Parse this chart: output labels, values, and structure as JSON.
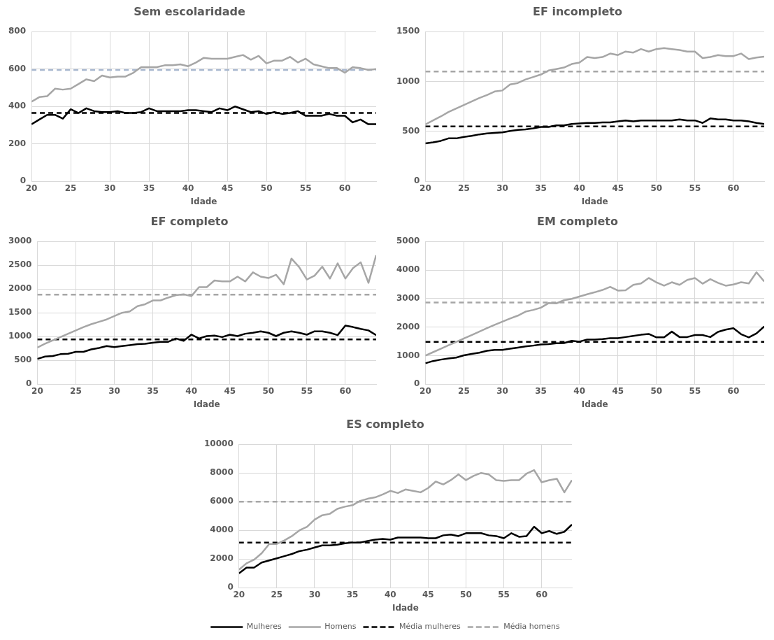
{
  "chart_data": [
    {
      "type": "line",
      "title": "Sem escolaridade",
      "xlabel": "Idade",
      "x": [
        20,
        21,
        22,
        23,
        24,
        25,
        26,
        27,
        28,
        29,
        30,
        31,
        32,
        33,
        34,
        35,
        36,
        37,
        38,
        39,
        40,
        41,
        42,
        43,
        44,
        45,
        46,
        47,
        48,
        49,
        50,
        51,
        52,
        53,
        54,
        55,
        56,
        57,
        58,
        59,
        60,
        61,
        62,
        63,
        64
      ],
      "xlim": [
        20,
        64
      ],
      "xticks": [
        20,
        25,
        30,
        35,
        40,
        45,
        50,
        55,
        60
      ],
      "ylim": [
        0,
        800
      ],
      "yticks": [
        0,
        200,
        400,
        600,
        800
      ],
      "grid": true,
      "legend": false,
      "series": [
        {
          "color": "#000000",
          "values": [
            305,
            330,
            355,
            355,
            335,
            385,
            365,
            390,
            375,
            370,
            370,
            375,
            365,
            365,
            370,
            390,
            375,
            375,
            375,
            375,
            380,
            380,
            375,
            370,
            390,
            380,
            400,
            385,
            370,
            375,
            360,
            370,
            360,
            365,
            375,
            350,
            350,
            350,
            360,
            350,
            350,
            315,
            330,
            305,
            305
          ]
        },
        {
          "color": "#a6a6a6",
          "values": [
            425,
            450,
            455,
            495,
            490,
            495,
            520,
            545,
            535,
            565,
            555,
            560,
            560,
            580,
            610,
            610,
            610,
            620,
            620,
            625,
            615,
            635,
            660,
            655,
            655,
            655,
            665,
            675,
            650,
            670,
            630,
            645,
            645,
            665,
            635,
            655,
            625,
            615,
            605,
            605,
            580,
            610,
            605,
            595,
            600
          ]
        },
        {
          "color": "#000000",
          "line_style": "dashed",
          "values": [
            365,
            365,
            365,
            365,
            365,
            365,
            365,
            365,
            365,
            365,
            365,
            365,
            365,
            365,
            365,
            365,
            365,
            365,
            365,
            365,
            365,
            365,
            365,
            365,
            365,
            365,
            365,
            365,
            365,
            365,
            365,
            365,
            365,
            365,
            365,
            365,
            365,
            365,
            365,
            365,
            365,
            365,
            365,
            365,
            365
          ]
        },
        {
          "color": "#a9b8d0",
          "line_style": "dashed",
          "values": [
            595,
            595,
            595,
            595,
            595,
            595,
            595,
            595,
            595,
            595,
            595,
            595,
            595,
            595,
            595,
            595,
            595,
            595,
            595,
            595,
            595,
            595,
            595,
            595,
            595,
            595,
            595,
            595,
            595,
            595,
            595,
            595,
            595,
            595,
            595,
            595,
            595,
            595,
            595,
            595,
            595,
            595,
            595,
            595,
            595
          ]
        }
      ]
    },
    {
      "type": "line",
      "title": "EF incompleto",
      "xlabel": "Idade",
      "x": [
        20,
        21,
        22,
        23,
        24,
        25,
        26,
        27,
        28,
        29,
        30,
        31,
        32,
        33,
        34,
        35,
        36,
        37,
        38,
        39,
        40,
        41,
        42,
        43,
        44,
        45,
        46,
        47,
        48,
        49,
        50,
        51,
        52,
        53,
        54,
        55,
        56,
        57,
        58,
        59,
        60,
        61,
        62,
        63,
        64
      ],
      "xlim": [
        20,
        64
      ],
      "xticks": [
        20,
        25,
        30,
        35,
        40,
        45,
        50,
        55,
        60
      ],
      "ylim": [
        0,
        1500
      ],
      "yticks": [
        0,
        500,
        1000,
        1500
      ],
      "grid": true,
      "legend": false,
      "series": [
        {
          "color": "#000000",
          "values": [
            380,
            390,
            405,
            430,
            430,
            445,
            455,
            470,
            480,
            485,
            490,
            505,
            515,
            520,
            530,
            545,
            545,
            560,
            560,
            575,
            580,
            585,
            585,
            590,
            590,
            600,
            610,
            600,
            610,
            610,
            610,
            610,
            610,
            620,
            610,
            610,
            585,
            630,
            620,
            620,
            610,
            610,
            600,
            585,
            575
          ]
        },
        {
          "color": "#a6a6a6",
          "values": [
            570,
            610,
            650,
            695,
            730,
            765,
            800,
            835,
            865,
            900,
            910,
            970,
            985,
            1020,
            1045,
            1070,
            1110,
            1125,
            1140,
            1175,
            1190,
            1245,
            1235,
            1245,
            1280,
            1265,
            1300,
            1290,
            1325,
            1300,
            1325,
            1335,
            1325,
            1315,
            1300,
            1300,
            1235,
            1245,
            1265,
            1255,
            1255,
            1280,
            1225,
            1240,
            1250
          ]
        },
        {
          "color": "#000000",
          "line_style": "dashed",
          "values": [
            550,
            550,
            550,
            550,
            550,
            550,
            550,
            550,
            550,
            550,
            550,
            550,
            550,
            550,
            550,
            550,
            550,
            550,
            550,
            550,
            550,
            550,
            550,
            550,
            550,
            550,
            550,
            550,
            550,
            550,
            550,
            550,
            550,
            550,
            550,
            550,
            550,
            550,
            550,
            550,
            550,
            550,
            550,
            550,
            550
          ]
        },
        {
          "color": "#a6a6a6",
          "line_style": "dashed",
          "values": [
            1100,
            1100,
            1100,
            1100,
            1100,
            1100,
            1100,
            1100,
            1100,
            1100,
            1100,
            1100,
            1100,
            1100,
            1100,
            1100,
            1100,
            1100,
            1100,
            1100,
            1100,
            1100,
            1100,
            1100,
            1100,
            1100,
            1100,
            1100,
            1100,
            1100,
            1100,
            1100,
            1100,
            1100,
            1100,
            1100,
            1100,
            1100,
            1100,
            1100,
            1100,
            1100,
            1100,
            1100,
            1100
          ]
        }
      ]
    },
    {
      "type": "line",
      "title": "EF completo",
      "xlabel": "Idade",
      "x": [
        20,
        21,
        22,
        23,
        24,
        25,
        26,
        27,
        28,
        29,
        30,
        31,
        32,
        33,
        34,
        35,
        36,
        37,
        38,
        39,
        40,
        41,
        42,
        43,
        44,
        45,
        46,
        47,
        48,
        49,
        50,
        51,
        52,
        53,
        54,
        55,
        56,
        57,
        58,
        59,
        60,
        61,
        62,
        63,
        64
      ],
      "xlim": [
        20,
        64
      ],
      "xticks": [
        20,
        25,
        30,
        35,
        40,
        45,
        50,
        55,
        60
      ],
      "ylim": [
        0,
        3000
      ],
      "yticks": [
        0,
        500,
        1000,
        1500,
        2000,
        2500,
        3000
      ],
      "grid": true,
      "legend": false,
      "series": [
        {
          "color": "#000000",
          "values": [
            530,
            580,
            590,
            630,
            640,
            680,
            680,
            730,
            760,
            800,
            780,
            800,
            820,
            840,
            850,
            870,
            890,
            890,
            960,
            910,
            1040,
            960,
            1010,
            1020,
            990,
            1040,
            1010,
            1060,
            1080,
            1110,
            1080,
            1010,
            1080,
            1110,
            1080,
            1040,
            1110,
            1110,
            1080,
            1030,
            1230,
            1200,
            1160,
            1130,
            1030
          ]
        },
        {
          "color": "#a6a6a6",
          "values": [
            770,
            850,
            920,
            990,
            1060,
            1130,
            1200,
            1260,
            1310,
            1360,
            1430,
            1500,
            1530,
            1640,
            1680,
            1760,
            1760,
            1820,
            1870,
            1890,
            1850,
            2040,
            2040,
            2180,
            2160,
            2160,
            2260,
            2160,
            2350,
            2260,
            2230,
            2300,
            2100,
            2640,
            2460,
            2200,
            2280,
            2470,
            2220,
            2540,
            2220,
            2440,
            2560,
            2130,
            2710
          ]
        },
        {
          "color": "#000000",
          "line_style": "dashed",
          "values": [
            940,
            940,
            940,
            940,
            940,
            940,
            940,
            940,
            940,
            940,
            940,
            940,
            940,
            940,
            940,
            940,
            940,
            940,
            940,
            940,
            940,
            940,
            940,
            940,
            940,
            940,
            940,
            940,
            940,
            940,
            940,
            940,
            940,
            940,
            940,
            940,
            940,
            940,
            940,
            940,
            940,
            940,
            940,
            940,
            940
          ]
        },
        {
          "color": "#a6a6a6",
          "line_style": "dashed",
          "values": [
            1880,
            1880,
            1880,
            1880,
            1880,
            1880,
            1880,
            1880,
            1880,
            1880,
            1880,
            1880,
            1880,
            1880,
            1880,
            1880,
            1880,
            1880,
            1880,
            1880,
            1880,
            1880,
            1880,
            1880,
            1880,
            1880,
            1880,
            1880,
            1880,
            1880,
            1880,
            1880,
            1880,
            1880,
            1880,
            1880,
            1880,
            1880,
            1880,
            1880,
            1880,
            1880,
            1880,
            1880,
            1880
          ]
        }
      ]
    },
    {
      "type": "line",
      "title": "EM completo",
      "xlabel": "Idade",
      "x": [
        20,
        21,
        22,
        23,
        24,
        25,
        26,
        27,
        28,
        29,
        30,
        31,
        32,
        33,
        34,
        35,
        36,
        37,
        38,
        39,
        40,
        41,
        42,
        43,
        44,
        45,
        46,
        47,
        48,
        49,
        50,
        51,
        52,
        53,
        54,
        55,
        56,
        57,
        58,
        59,
        60,
        61,
        62,
        63,
        64
      ],
      "xlim": [
        20,
        64
      ],
      "xticks": [
        20,
        25,
        30,
        35,
        40,
        45,
        50,
        55,
        60
      ],
      "ylim": [
        0,
        5000
      ],
      "yticks": [
        0,
        1000,
        2000,
        3000,
        4000,
        5000
      ],
      "grid": true,
      "legend": false,
      "series": [
        {
          "color": "#000000",
          "values": [
            730,
            810,
            860,
            900,
            930,
            1010,
            1060,
            1100,
            1170,
            1200,
            1200,
            1240,
            1280,
            1320,
            1350,
            1390,
            1400,
            1430,
            1440,
            1520,
            1490,
            1560,
            1560,
            1580,
            1610,
            1610,
            1650,
            1690,
            1730,
            1760,
            1640,
            1640,
            1840,
            1650,
            1650,
            1720,
            1720,
            1650,
            1830,
            1910,
            1960,
            1750,
            1640,
            1780,
            2020
          ]
        },
        {
          "color": "#a6a6a6",
          "values": [
            1000,
            1120,
            1240,
            1360,
            1480,
            1600,
            1720,
            1840,
            1960,
            2080,
            2190,
            2300,
            2400,
            2540,
            2600,
            2680,
            2840,
            2830,
            2940,
            2990,
            3070,
            3150,
            3220,
            3300,
            3410,
            3280,
            3290,
            3480,
            3530,
            3720,
            3570,
            3450,
            3570,
            3480,
            3650,
            3720,
            3520,
            3680,
            3550,
            3450,
            3490,
            3570,
            3530,
            3920,
            3600
          ]
        },
        {
          "color": "#000000",
          "line_style": "dashed",
          "values": [
            1480,
            1480,
            1480,
            1480,
            1480,
            1480,
            1480,
            1480,
            1480,
            1480,
            1480,
            1480,
            1480,
            1480,
            1480,
            1480,
            1480,
            1480,
            1480,
            1480,
            1480,
            1480,
            1480,
            1480,
            1480,
            1480,
            1480,
            1480,
            1480,
            1480,
            1480,
            1480,
            1480,
            1480,
            1480,
            1480,
            1480,
            1480,
            1480,
            1480,
            1480,
            1480,
            1480,
            1480,
            1480
          ]
        },
        {
          "color": "#a6a6a6",
          "line_style": "dashed",
          "values": [
            2860,
            2860,
            2860,
            2860,
            2860,
            2860,
            2860,
            2860,
            2860,
            2860,
            2860,
            2860,
            2860,
            2860,
            2860,
            2860,
            2860,
            2860,
            2860,
            2860,
            2860,
            2860,
            2860,
            2860,
            2860,
            2860,
            2860,
            2860,
            2860,
            2860,
            2860,
            2860,
            2860,
            2860,
            2860,
            2860,
            2860,
            2860,
            2860,
            2860,
            2860,
            2860,
            2860,
            2860,
            2860
          ]
        }
      ]
    },
    {
      "type": "line",
      "title": "ES completo",
      "xlabel": "Idade",
      "x": [
        20,
        21,
        22,
        23,
        24,
        25,
        26,
        27,
        28,
        29,
        30,
        31,
        32,
        33,
        34,
        35,
        36,
        37,
        38,
        39,
        40,
        41,
        42,
        43,
        44,
        45,
        46,
        47,
        48,
        49,
        50,
        51,
        52,
        53,
        54,
        55,
        56,
        57,
        58,
        59,
        60,
        61,
        62,
        63,
        64
      ],
      "xlim": [
        20,
        64
      ],
      "xticks": [
        20,
        25,
        30,
        35,
        40,
        45,
        50,
        55,
        60
      ],
      "ylim": [
        0,
        10000
      ],
      "yticks": [
        0,
        2000,
        4000,
        6000,
        8000,
        10000
      ],
      "grid": true,
      "legend": "bottom",
      "series": [
        {
          "name": "Mulheres",
          "color": "#000000",
          "values": [
            1000,
            1400,
            1400,
            1750,
            1900,
            2050,
            2200,
            2350,
            2550,
            2650,
            2800,
            2950,
            2950,
            3000,
            3100,
            3150,
            3150,
            3250,
            3350,
            3400,
            3350,
            3500,
            3500,
            3500,
            3500,
            3450,
            3450,
            3650,
            3700,
            3600,
            3800,
            3800,
            3800,
            3650,
            3600,
            3450,
            3800,
            3550,
            3600,
            4250,
            3800,
            3950,
            3750,
            3900,
            4400
          ]
        },
        {
          "name": "Homens",
          "color": "#a6a6a6",
          "values": [
            1250,
            1700,
            1950,
            2400,
            3050,
            3050,
            3300,
            3600,
            4000,
            4250,
            4750,
            5050,
            5150,
            5500,
            5650,
            5750,
            6050,
            6200,
            6300,
            6500,
            6750,
            6600,
            6850,
            6750,
            6650,
            6950,
            7400,
            7200,
            7500,
            7900,
            7500,
            7800,
            8000,
            7900,
            7500,
            7450,
            7500,
            7500,
            7950,
            8200,
            7350,
            7500,
            7600,
            6650,
            7500
          ]
        },
        {
          "name": "Média mulheres",
          "color": "#000000",
          "line_style": "dashed",
          "values": [
            3150,
            3150,
            3150,
            3150,
            3150,
            3150,
            3150,
            3150,
            3150,
            3150,
            3150,
            3150,
            3150,
            3150,
            3150,
            3150,
            3150,
            3150,
            3150,
            3150,
            3150,
            3150,
            3150,
            3150,
            3150,
            3150,
            3150,
            3150,
            3150,
            3150,
            3150,
            3150,
            3150,
            3150,
            3150,
            3150,
            3150,
            3150,
            3150,
            3150,
            3150,
            3150,
            3150,
            3150,
            3150
          ]
        },
        {
          "name": "Média homens",
          "color": "#a6a6a6",
          "line_style": "dashed",
          "values": [
            6000,
            6000,
            6000,
            6000,
            6000,
            6000,
            6000,
            6000,
            6000,
            6000,
            6000,
            6000,
            6000,
            6000,
            6000,
            6000,
            6000,
            6000,
            6000,
            6000,
            6000,
            6000,
            6000,
            6000,
            6000,
            6000,
            6000,
            6000,
            6000,
            6000,
            6000,
            6000,
            6000,
            6000,
            6000,
            6000,
            6000,
            6000,
            6000,
            6000,
            6000,
            6000,
            6000,
            6000,
            6000
          ]
        }
      ]
    }
  ]
}
